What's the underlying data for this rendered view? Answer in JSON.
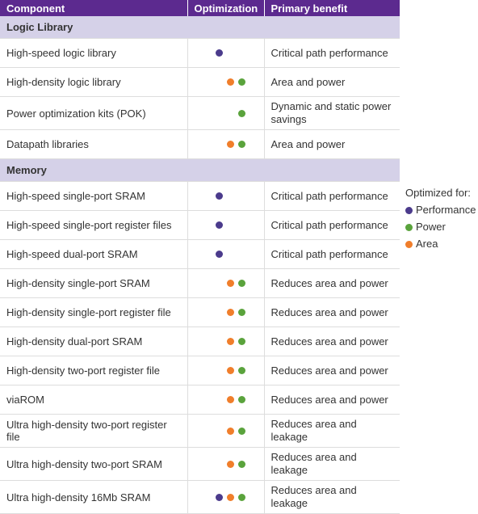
{
  "header": [
    "Component",
    "Optimization",
    "Primary benefit"
  ],
  "sections": [
    {
      "title": "Logic Library",
      "rows": [
        {
          "component": "High-speed logic library",
          "optimized": [
            true,
            false,
            false
          ],
          "benefit": "Critical path performance"
        },
        {
          "component": "High-density logic library",
          "optimized": [
            false,
            true,
            true
          ],
          "benefit": "Area and power"
        },
        {
          "component": "Power optimization kits (POK)",
          "optimized": [
            false,
            true,
            false
          ],
          "benefit": "Dynamic and static power savings"
        },
        {
          "component": "Datapath libraries",
          "optimized": [
            false,
            true,
            true
          ],
          "benefit": "Area and power"
        }
      ]
    },
    {
      "title": "Memory",
      "rows": [
        {
          "component": "High-speed single-port SRAM",
          "optimized": [
            true,
            false,
            false
          ],
          "benefit": "Critical path performance"
        },
        {
          "component": "High-speed single-port register files",
          "optimized": [
            true,
            false,
            false
          ],
          "benefit": "Critical path performance"
        },
        {
          "component": "High-speed dual-port SRAM",
          "optimized": [
            true,
            false,
            false
          ],
          "benefit": "Critical path performance"
        },
        {
          "component": "High-density single-port SRAM",
          "optimized": [
            false,
            true,
            true
          ],
          "benefit": "Reduces area and power"
        },
        {
          "component": "High-density single-port register file",
          "optimized": [
            false,
            true,
            true
          ],
          "benefit": "Reduces area and power"
        },
        {
          "component": "High-density dual-port SRAM",
          "optimized": [
            false,
            true,
            true
          ],
          "benefit": "Reduces area and power"
        },
        {
          "component": "High-density two-port register file",
          "optimized": [
            false,
            true,
            true
          ],
          "benefit": "Reduces area and power"
        },
        {
          "component": "viaROM",
          "optimized": [
            false,
            true,
            true
          ],
          "benefit": "Reduces area and power"
        },
        {
          "component": "Ultra high-density two-port register file",
          "optimized": [
            false,
            true,
            true
          ],
          "benefit": "Reduces area and leakage"
        },
        {
          "component": "Ultra high-density two-port SRAM",
          "optimized": [
            false,
            true,
            true
          ],
          "benefit": "Reduces area and leakage"
        },
        {
          "component": "Ultra high-density 16Mb SRAM",
          "optimized": [
            true,
            true,
            true
          ],
          "benefit": "Reduces area and leakage"
        }
      ]
    }
  ],
  "legend": {
    "title": "Optimized for:",
    "items": [
      {
        "label": "Performance",
        "color": "#4b3b8c"
      },
      {
        "label": "Power",
        "color": "#5aa33c"
      },
      {
        "label": "Area",
        "color": "#f07e2b"
      }
    ]
  }
}
